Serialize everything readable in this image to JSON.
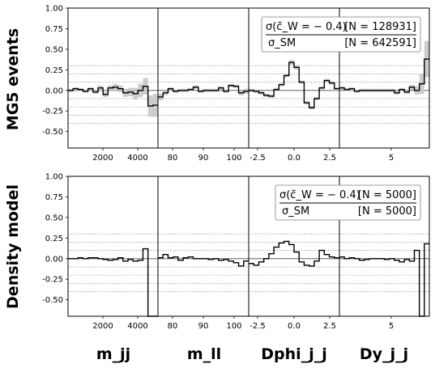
{
  "chart_data": [
    {
      "type": "line",
      "panel": "top",
      "ylabel": "MG5 events",
      "ylim": [
        -0.7,
        1.0
      ],
      "yticks": [
        "1.00",
        "0.75",
        "0.50",
        "0.25",
        "0.00",
        "-0.25",
        "-0.50"
      ],
      "grid": "dotted horizontal reference lines",
      "legend_position": "top-right",
      "legend": {
        "numerator": "σ(c̃_W = − 0.4)",
        "numerator_count": "[N = 128931]",
        "denominator": "σ_SM",
        "denominator_count": "[N = 642591]"
      },
      "error_band": true,
      "segments": [
        {
          "name": "m_jj",
          "tick_labels": [
            "2000",
            "4000"
          ],
          "values": [
            0.0,
            0.02,
            0.01,
            -0.01,
            0.02,
            -0.02,
            0.03,
            -0.05,
            0.03,
            0.04,
            0.02,
            -0.03,
            -0.02,
            -0.04,
            0.0,
            0.05,
            -0.19,
            -0.18
          ],
          "errors": [
            0.02,
            0.02,
            0.02,
            0.02,
            0.02,
            0.02,
            0.03,
            0.03,
            0.03,
            0.04,
            0.04,
            0.05,
            0.05,
            0.07,
            0.08,
            0.1,
            0.13,
            0.14
          ]
        },
        {
          "name": "m_ll",
          "tick_labels": [
            "80",
            "90",
            "100"
          ],
          "values": [
            -0.08,
            -0.03,
            0.02,
            -0.01,
            0.0,
            0.0,
            0.01,
            0.04,
            -0.01,
            0.0,
            0.0,
            0.0,
            0.03,
            -0.01,
            0.06,
            0.05,
            -0.03,
            -0.01
          ],
          "errors": [
            0.04,
            0.03,
            0.02,
            0.02,
            0.02,
            0.02,
            0.02,
            0.02,
            0.02,
            0.02,
            0.02,
            0.02,
            0.02,
            0.02,
            0.02,
            0.02,
            0.03,
            0.03
          ]
        },
        {
          "name": "Dphi_j_j",
          "tick_labels": [
            "-2.5",
            "0.0",
            "2.5"
          ],
          "values": [
            0.0,
            -0.01,
            -0.03,
            -0.06,
            -0.07,
            0.01,
            0.07,
            0.18,
            0.34,
            0.28,
            0.1,
            -0.15,
            -0.21,
            -0.1,
            0.03,
            0.12,
            0.09,
            0.02
          ],
          "errors": [
            0.02,
            0.02,
            0.02,
            0.02,
            0.02,
            0.02,
            0.02,
            0.02,
            0.03,
            0.03,
            0.02,
            0.02,
            0.02,
            0.02,
            0.02,
            0.02,
            0.02,
            0.02
          ]
        },
        {
          "name": "Dy_j_j",
          "tick_labels": [
            "5"
          ],
          "values": [
            0.03,
            0.01,
            0.02,
            -0.01,
            0.0,
            0.0,
            0.0,
            0.0,
            0.0,
            0.0,
            0.0,
            -0.03,
            0.01,
            -0.02,
            0.04,
            0.0,
            0.08,
            0.38
          ],
          "errors": [
            0.02,
            0.02,
            0.02,
            0.02,
            0.02,
            0.02,
            0.02,
            0.02,
            0.02,
            0.02,
            0.02,
            0.02,
            0.02,
            0.02,
            0.03,
            0.05,
            0.12,
            0.22
          ]
        }
      ]
    },
    {
      "type": "line",
      "panel": "bottom",
      "ylabel": "Density model",
      "ylim": [
        -0.7,
        1.0
      ],
      "yticks": [
        "1.00",
        "0.75",
        "0.50",
        "0.25",
        "0.00",
        "-0.25",
        "-0.50"
      ],
      "grid": "dotted horizontal reference lines",
      "legend_position": "top-right",
      "legend": {
        "numerator": "σ(c̃_W = − 0.4)",
        "numerator_count": "[N = 5000]",
        "denominator": "σ_SM",
        "denominator_count": "[N = 5000]"
      },
      "error_band": false,
      "segments": [
        {
          "name": "m_jj",
          "tick_labels": [
            "2000",
            "4000"
          ],
          "values": [
            0.0,
            0.0,
            0.01,
            0.0,
            0.01,
            0.01,
            0.0,
            -0.01,
            -0.02,
            -0.01,
            0.01,
            -0.03,
            -0.01,
            -0.03,
            -0.02,
            0.12,
            -0.7,
            -0.7
          ]
        },
        {
          "name": "m_ll",
          "tick_labels": [
            "80",
            "90",
            "100"
          ],
          "values": [
            0.01,
            0.05,
            0.01,
            0.02,
            -0.02,
            0.01,
            0.02,
            0.0,
            0.0,
            0.0,
            -0.01,
            0.0,
            -0.02,
            -0.01,
            -0.03,
            -0.05,
            -0.09,
            -0.03
          ]
        },
        {
          "name": "Dphi_j_j",
          "tick_labels": [
            "-2.5",
            "0.0",
            "2.5"
          ],
          "values": [
            -0.06,
            -0.08,
            -0.04,
            0.0,
            0.06,
            0.14,
            0.19,
            0.21,
            0.17,
            0.08,
            -0.04,
            -0.08,
            -0.09,
            -0.03,
            0.1,
            0.05,
            0.02,
            0.01
          ]
        },
        {
          "name": "Dy_j_j",
          "tick_labels": [
            "5"
          ],
          "values": [
            0.02,
            0.0,
            0.01,
            0.0,
            -0.02,
            -0.01,
            0.0,
            0.0,
            0.0,
            -0.01,
            0.0,
            -0.02,
            -0.04,
            -0.01,
            -0.03,
            0.1,
            -0.7,
            0.18
          ]
        }
      ]
    }
  ],
  "variable_labels": [
    "m_jj",
    "m_ll",
    "Dphi_j_j",
    "Dy_j_j"
  ],
  "colors": {
    "line": "#000000",
    "band": "#c8c8c8",
    "reference_line": "#808080",
    "frame": "#000000"
  }
}
